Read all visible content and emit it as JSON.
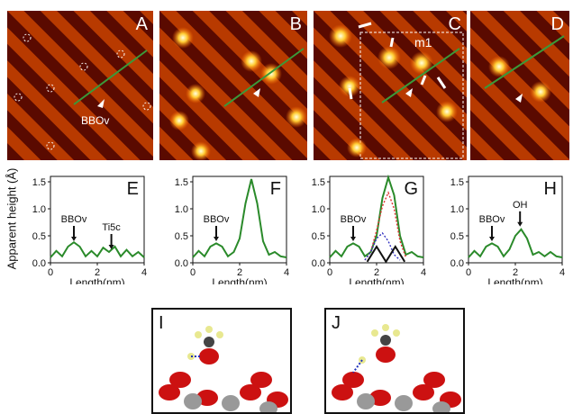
{
  "stm_panels": [
    {
      "label": "A",
      "annotation": "BBOv"
    },
    {
      "label": "B"
    },
    {
      "label": "C",
      "annotation": "m1"
    },
    {
      "label": "D"
    }
  ],
  "y_axis_label": "Apparent height (Å)",
  "chart_data": [
    {
      "type": "line",
      "label": "E",
      "xlabel": "Length(nm)",
      "xlim": [
        0,
        4
      ],
      "ylim": [
        0,
        1.6
      ],
      "xticks": [
        "0",
        "2",
        "4"
      ],
      "yticks": [
        "0.0",
        "0.5",
        "1.0",
        "1.5"
      ],
      "annotations": [
        {
          "text": "BBOv",
          "x": 1.0,
          "y": 0.35
        },
        {
          "text": "Ti5c",
          "x": 2.6,
          "y": 0.2
        }
      ],
      "series": [
        {
          "color": "#2a8a2a",
          "x": [
            0,
            0.25,
            0.5,
            0.75,
            1.0,
            1.25,
            1.5,
            1.75,
            2.0,
            2.25,
            2.5,
            2.75,
            3.0,
            3.25,
            3.5,
            3.75,
            4.0
          ],
          "y": [
            0.1,
            0.22,
            0.12,
            0.3,
            0.38,
            0.3,
            0.12,
            0.22,
            0.12,
            0.28,
            0.2,
            0.3,
            0.12,
            0.24,
            0.12,
            0.2,
            0.1
          ]
        }
      ]
    },
    {
      "type": "line",
      "label": "F",
      "xlabel": "Length(nm)",
      "xlim": [
        0,
        4
      ],
      "ylim": [
        0,
        1.6
      ],
      "xticks": [
        "0",
        "2",
        "4"
      ],
      "yticks": [
        "0.0",
        "0.5",
        "1.0",
        "1.5"
      ],
      "annotations": [
        {
          "text": "BBOv",
          "x": 1.0,
          "y": 0.35
        }
      ],
      "series": [
        {
          "color": "#2a8a2a",
          "x": [
            0,
            0.25,
            0.5,
            0.75,
            1.0,
            1.25,
            1.5,
            1.75,
            2.0,
            2.25,
            2.5,
            2.75,
            3.0,
            3.25,
            3.5,
            3.75,
            4.0
          ],
          "y": [
            0.1,
            0.22,
            0.12,
            0.3,
            0.36,
            0.3,
            0.12,
            0.2,
            0.45,
            1.1,
            1.55,
            1.1,
            0.4,
            0.15,
            0.2,
            0.12,
            0.1
          ]
        }
      ]
    },
    {
      "type": "line",
      "label": "G",
      "xlabel": "Length(nm)",
      "xlim": [
        0,
        4
      ],
      "ylim": [
        0,
        1.6
      ],
      "xticks": [
        "0",
        "2",
        "4"
      ],
      "yticks": [
        "0.0",
        "0.5",
        "1.0",
        "1.5"
      ],
      "annotations": [
        {
          "text": "BBOv",
          "x": 1.0,
          "y": 0.35
        }
      ],
      "series": [
        {
          "color": "#2a8a2a",
          "x": [
            0,
            0.25,
            0.5,
            0.75,
            1.0,
            1.25,
            1.5,
            1.75,
            2.0,
            2.25,
            2.5,
            2.75,
            3.0,
            3.25,
            3.5,
            3.75,
            4.0
          ],
          "y": [
            0.1,
            0.22,
            0.12,
            0.3,
            0.36,
            0.3,
            0.12,
            0.2,
            0.5,
            1.2,
            1.58,
            1.25,
            0.5,
            0.15,
            0.2,
            0.12,
            0.1
          ]
        },
        {
          "color": "#e03030",
          "dash": true,
          "x": [
            1.5,
            1.75,
            2.0,
            2.25,
            2.5,
            2.75,
            3.0,
            3.25
          ],
          "y": [
            0.05,
            0.2,
            0.6,
            1.05,
            1.3,
            1.0,
            0.4,
            0.1
          ]
        },
        {
          "color": "#3030c0",
          "dash": true,
          "x": [
            1.5,
            1.75,
            2.0,
            2.25,
            2.5,
            2.75,
            3.0
          ],
          "y": [
            0.05,
            0.2,
            0.45,
            0.55,
            0.4,
            0.15,
            0.05
          ]
        },
        {
          "color": "#111111",
          "x": [
            1.6,
            2.0,
            2.4,
            2.8,
            3.2
          ],
          "y": [
            0.02,
            0.3,
            0.02,
            0.3,
            0.02
          ]
        }
      ]
    },
    {
      "type": "line",
      "label": "H",
      "xlabel": "Length(nm)",
      "xlim": [
        0,
        4
      ],
      "ylim": [
        0,
        1.6
      ],
      "xticks": [
        "0",
        "2",
        "4"
      ],
      "yticks": [
        "0.0",
        "0.5",
        "1.0",
        "1.5"
      ],
      "annotations": [
        {
          "text": "BBOv",
          "x": 1.0,
          "y": 0.35
        },
        {
          "text": "OH",
          "x": 2.2,
          "y": 0.62
        }
      ],
      "series": [
        {
          "color": "#2a8a2a",
          "x": [
            0,
            0.25,
            0.5,
            0.75,
            1.0,
            1.25,
            1.5,
            1.75,
            2.0,
            2.25,
            2.5,
            2.75,
            3.0,
            3.25,
            3.5,
            3.75,
            4.0
          ],
          "y": [
            0.1,
            0.22,
            0.12,
            0.3,
            0.36,
            0.3,
            0.12,
            0.25,
            0.5,
            0.62,
            0.45,
            0.15,
            0.2,
            0.12,
            0.2,
            0.12,
            0.1
          ]
        }
      ]
    }
  ],
  "mol_panels": [
    {
      "label": "I"
    },
    {
      "label": "J"
    }
  ]
}
